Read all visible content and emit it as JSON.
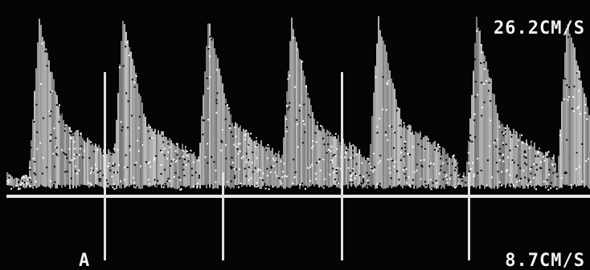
{
  "screen": {
    "labels": {
      "top_right": "26.2CM/S",
      "bottom_left": "A",
      "bottom_right": "8.7CM/S"
    }
  }
}
